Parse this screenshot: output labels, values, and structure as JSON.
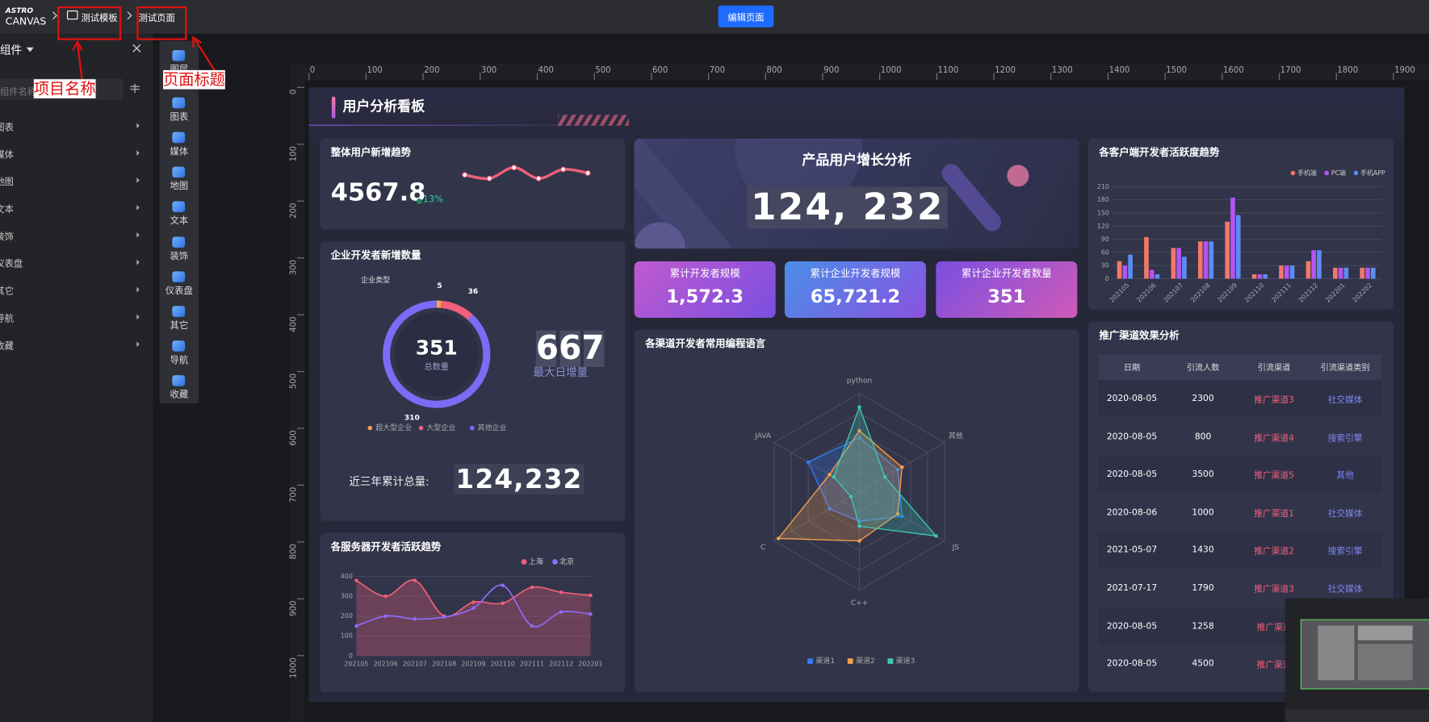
{
  "header": {
    "logo_top": "ASTRO",
    "logo_bottom": "CANVAS",
    "project_name": "测试模板",
    "page_title": "测试页面",
    "edit_button": "编辑页面"
  },
  "annotations": {
    "project_name": "项目名称",
    "page_title": "页面标题"
  },
  "component_panel": {
    "title": "组件",
    "search_placeholder": "组件名称",
    "categories": [
      "图表",
      "媒体",
      "地图",
      "文本",
      "装饰",
      "仪表盘",
      "其它",
      "导航",
      "收藏"
    ]
  },
  "toolbar": {
    "items": [
      "图层",
      "图表",
      "媒体",
      "地图",
      "文本",
      "装饰",
      "仪表盘",
      "其它",
      "导航",
      "收藏"
    ]
  },
  "ruler": {
    "x_ticks": [
      0,
      100,
      200,
      300,
      400,
      500,
      600,
      700,
      800,
      900,
      1000,
      1100,
      1200,
      1300,
      1400,
      1500,
      1600,
      1700,
      1800,
      1900
    ],
    "y_ticks": [
      0,
      100,
      200,
      300,
      400,
      500,
      600,
      700,
      800,
      900,
      1000
    ]
  },
  "dashboard": {
    "title": "用户分析看板",
    "banner": {
      "title": "产品用户增长分析",
      "value": "124, 232"
    },
    "stats": [
      {
        "title": "累计开发者规模",
        "value": "1,572.3"
      },
      {
        "title": "累计企业开发者规模",
        "value": "65,721.2"
      },
      {
        "title": "累计企业开发者数量",
        "value": "351"
      }
    ],
    "table": {
      "title": "推广渠道效果分析",
      "columns": [
        "日期",
        "引流人数",
        "引流渠道",
        "引流渠道类别"
      ],
      "rows": [
        [
          "2020-08-05",
          2300,
          "推广渠道3",
          "社交媒体"
        ],
        [
          "2020-08-05",
          800,
          "推广渠道4",
          "搜索引擎"
        ],
        [
          "2020-08-05",
          3500,
          "推广渠道5",
          "其他"
        ],
        [
          "2020-08-06",
          1000,
          "推广渠道1",
          "社交媒体"
        ],
        [
          "2021-05-07",
          1430,
          "推广渠道2",
          "搜索引擎"
        ],
        [
          "2021-07-17",
          1790,
          "推广渠道3",
          "社交媒体"
        ],
        [
          "2020-08-05",
          1258,
          "推广渠道"
        ],
        [
          "2020-08-05",
          4500,
          "推广渠道"
        ]
      ]
    }
  },
  "chart_data": [
    {
      "type": "sparkline",
      "title": "整体用户新增趋势",
      "kpi_value": 4567.8,
      "kpi_change": "13%",
      "color": "#f0607a",
      "values": [
        50,
        40,
        70,
        40,
        65,
        55
      ]
    },
    {
      "type": "donut",
      "title": "企业开发者新增数量",
      "legend_title": "企业类型",
      "categories": [
        "超大型企业",
        "大型企业",
        "其他企业"
      ],
      "values": [
        5,
        36,
        310
      ],
      "colors": [
        "#f5a04b",
        "#f0607a",
        "#7a6cf5"
      ],
      "center_value": 351,
      "center_label": "总数量",
      "max_daily_value": 667,
      "max_daily_label": "最大日增量",
      "total_label": "近三年累计总量:",
      "total_value": "124,232"
    },
    {
      "type": "line",
      "title": "各服务器开发者活跃趋势",
      "categories": [
        "202105",
        "202106",
        "202107",
        "202108",
        "202109",
        "202110",
        "202111",
        "202112",
        "202201"
      ],
      "series": [
        {
          "name": "上海",
          "color": "#f0607a",
          "values": [
            380,
            300,
            380,
            200,
            270,
            265,
            345,
            320,
            305
          ]
        },
        {
          "name": "北京",
          "color": "#8f6cf5",
          "values": [
            150,
            200,
            185,
            195,
            240,
            355,
            150,
            220,
            210
          ]
        }
      ],
      "ylim": [
        0,
        400
      ],
      "yticks": [
        0,
        100,
        200,
        300,
        400
      ],
      "smooth": true,
      "area": true
    },
    {
      "type": "radar",
      "title": "各渠道开发者常用编程语言",
      "indicators": [
        "python",
        "其他",
        "JS",
        "C++",
        "C",
        "JAVA"
      ],
      "max": 100,
      "series": [
        {
          "name": "渠道1",
          "color": "#2f7df6",
          "values": [
            55,
            45,
            50,
            30,
            35,
            60
          ]
        },
        {
          "name": "渠道2",
          "color": "#f5a04b",
          "values": [
            62,
            50,
            45,
            50,
            95,
            35
          ]
        },
        {
          "name": "渠道3",
          "color": "#3cc8b4",
          "values": [
            86,
            30,
            90,
            35,
            10,
            30
          ]
        }
      ]
    },
    {
      "type": "bar",
      "title": "各客户端开发者活跃度趋势",
      "categories": [
        "202105",
        "202106",
        "202107",
        "202108",
        "202109",
        "202110",
        "202111",
        "202112",
        "202201",
        "202202"
      ],
      "series": [
        {
          "name": "手机端",
          "color": "#f2786a",
          "values": [
            40,
            95,
            70,
            85,
            130,
            10,
            30,
            40,
            25,
            25
          ]
        },
        {
          "name": "PC端",
          "color": "#b455f0",
          "values": [
            30,
            20,
            70,
            85,
            185,
            10,
            30,
            65,
            25,
            25
          ]
        },
        {
          "name": "手机APP",
          "color": "#5b8cf5",
          "values": [
            55,
            10,
            50,
            85,
            145,
            10,
            30,
            65,
            25,
            25
          ]
        }
      ],
      "ylim": [
        0,
        210
      ],
      "yticks": [
        0,
        30,
        60,
        90,
        120,
        150,
        180,
        210
      ],
      "grid": true,
      "legend": "top-right"
    }
  ]
}
